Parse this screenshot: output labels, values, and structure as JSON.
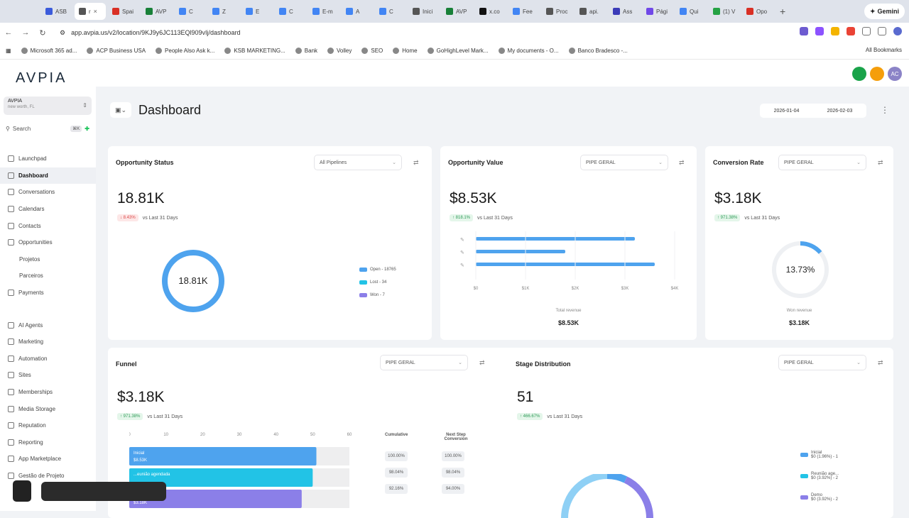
{
  "browser": {
    "tabs": [
      {
        "label": "ASB",
        "color": "#3b5bdb"
      },
      {
        "label": "r",
        "color": "#555555",
        "active": true
      },
      {
        "label": "Spai",
        "color": "#d93025"
      },
      {
        "label": "AVP",
        "color": "#188038"
      },
      {
        "label": "C",
        "color": "#4285f4"
      },
      {
        "label": "Z",
        "color": "#4285f4"
      },
      {
        "label": "E",
        "color": "#4285f4"
      },
      {
        "label": "C",
        "color": "#4285f4"
      },
      {
        "label": "E-m",
        "color": "#4285f4"
      },
      {
        "label": "A",
        "color": "#4285f4"
      },
      {
        "label": "C",
        "color": "#4285f4"
      },
      {
        "label": "Inici",
        "color": "#555555"
      },
      {
        "label": "AVP",
        "color": "#188038"
      },
      {
        "label": "x.co",
        "color": "#111111"
      },
      {
        "label": "Fee",
        "color": "#4285f4"
      },
      {
        "label": "Proc",
        "color": "#555555"
      },
      {
        "label": "api.",
        "color": "#555555"
      },
      {
        "label": "Ass",
        "color": "#3b3bb8"
      },
      {
        "label": "Pági",
        "color": "#7048e8"
      },
      {
        "label": "Qui",
        "color": "#4285f4"
      },
      {
        "label": "(1) V",
        "color": "#25a244"
      },
      {
        "label": "Opo",
        "color": "#d93025"
      }
    ],
    "new_tab": "+",
    "gemini": "Gemini",
    "url": "app.avpia.us/v2/location/9KJ9y6JC113EQl909vIj/dashboard",
    "bookmarks": [
      "Microsoft 365 ad...",
      "ACP Business USA",
      "People Also Ask k...",
      "KSB MARKETING...",
      "Bank",
      "Volley",
      "SEO",
      "Home",
      "GoHighLevel Mark...",
      "My documents - O...",
      "Banco Bradesco -..."
    ],
    "all_bookmarks": "All Bookmarks"
  },
  "app": {
    "logo": "AVPIA",
    "top_icons": [
      {
        "label": "",
        "color": "#1aa34a"
      },
      {
        "label": "",
        "color": "#f59e0b"
      },
      {
        "label": "AC",
        "color": "#8b83c7"
      }
    ]
  },
  "sidebar": {
    "account_name": "AVPIA",
    "account_sub": "new worth, FL",
    "search": "Search",
    "search_kbd": "⌘K",
    "items": [
      {
        "label": "Launchpad"
      },
      {
        "label": "Dashboard",
        "active": true
      },
      {
        "label": "Conversations"
      },
      {
        "label": "Calendars"
      },
      {
        "label": "Contacts"
      },
      {
        "label": "Opportunities"
      },
      {
        "label": "Projetos",
        "sub": true
      },
      {
        "label": "Parceiros",
        "sub": true
      },
      {
        "label": "Payments"
      },
      {
        "gap": true
      },
      {
        "label": "AI Agents"
      },
      {
        "label": "Marketing"
      },
      {
        "label": "Automation"
      },
      {
        "label": "Sites"
      },
      {
        "label": "Memberships"
      },
      {
        "label": "Media Storage"
      },
      {
        "label": "Reputation"
      },
      {
        "label": "Reporting"
      },
      {
        "label": "App Marketplace"
      },
      {
        "label": "Gestão de Projeto"
      }
    ]
  },
  "dashboard": {
    "title": "Dashboard",
    "date_start": "2026-01-04",
    "date_end": "2026-02-03",
    "opportunity_status": {
      "title": "Opportunity Status",
      "filter": "All Pipelines",
      "value": "18.81K",
      "delta": "↓ 8.43%",
      "delta_text": "vs Last 31 Days",
      "center": "18.81K",
      "legend": [
        {
          "label": "Open - 18765",
          "color": "#4ea3ee"
        },
        {
          "label": "Lost - 34",
          "color": "#22c3e6"
        },
        {
          "label": "Won - 7",
          "color": "#8b7fe8"
        }
      ]
    },
    "opportunity_value": {
      "title": "Opportunity Value",
      "filter": "PIPE GERAL",
      "value": "$8.53K",
      "delta": "↑ 818.1%",
      "delta_text": "vs Last 31 Days",
      "bars": [
        3.2,
        1.8,
        3.6
      ],
      "ticks": [
        "$0",
        "$1K",
        "$2K",
        "$3K",
        "$4K"
      ],
      "caption": "Total revenue",
      "caption_value": "$8.53K"
    },
    "conversion_rate": {
      "title": "Conversion Rate",
      "filter": "PIPE GERAL",
      "value": "$3.18K",
      "delta": "↑ 971.38%",
      "delta_text": "vs Last 31 Days",
      "center": "13.73%",
      "percent": 13.73,
      "caption": "Won revenue",
      "caption_value": "$3.18K"
    },
    "funnel": {
      "title": "Funnel",
      "filter": "PIPE GERAL",
      "value": "$3.18K",
      "delta": "↑ 971.38%",
      "delta_text": "vs Last 31 Days",
      "ticks": [
        "0",
        "10",
        "20",
        "30",
        "40",
        "50",
        "60"
      ],
      "stages": [
        {
          "label": "Inicial",
          "sub": "$8.53K",
          "value": 51,
          "color": "#4ea3ee"
        },
        {
          "label": "...eunião agendada",
          "sub": "",
          "value": 50,
          "color": "#22c3e6"
        },
        {
          "label": "",
          "sub": "$3.18K",
          "value": 47,
          "color": "#8b7fe8"
        }
      ],
      "col_cumulative": "Cumulative",
      "col_next": "Next Step Conversion",
      "cumulative": [
        "100.00%",
        "98.04%",
        "92.16%"
      ],
      "next": [
        "100.00%",
        "98.04%",
        "94.00%"
      ]
    },
    "stage_distribution": {
      "title": "Stage Distribution",
      "filter": "PIPE GERAL",
      "value": "51",
      "delta": "↑ 466.67%",
      "delta_text": "vs Last 31 Days",
      "legend": [
        {
          "label": "Inicial",
          "sub": "$0 (1.96%) - 1",
          "color": "#4ea3ee"
        },
        {
          "label": "Reunião age...",
          "sub": "$0 (3.92%) - 2",
          "color": "#22c3e6"
        },
        {
          "label": "Demo",
          "sub": "$0 (3.92%) - 2",
          "color": "#8b7fe8"
        }
      ]
    }
  }
}
